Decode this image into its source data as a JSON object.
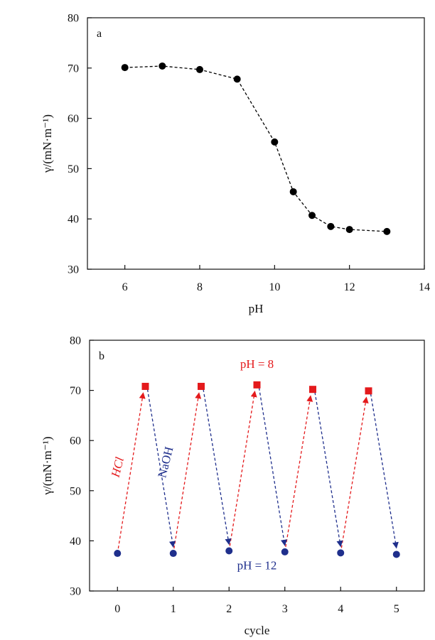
{
  "chart_data": [
    {
      "type": "line",
      "panel_label": "a",
      "xlabel": "pH",
      "ylabel": "γ/(mN·m⁻¹)",
      "xlim": [
        5,
        14
      ],
      "ylim": [
        30,
        80
      ],
      "x_ticks": [
        6,
        8,
        10,
        12,
        14
      ],
      "y_ticks": [
        30,
        40,
        50,
        60,
        70,
        80
      ],
      "grid": false,
      "series": [
        {
          "marker": "circle",
          "line_style": "dashed",
          "color": "#000000",
          "points": [
            {
              "x": 6.0,
              "y": 70.1
            },
            {
              "x": 7.0,
              "y": 70.4
            },
            {
              "x": 8.0,
              "y": 69.7
            },
            {
              "x": 9.0,
              "y": 67.8
            },
            {
              "x": 10.0,
              "y": 55.3
            },
            {
              "x": 10.5,
              "y": 45.4
            },
            {
              "x": 11.0,
              "y": 40.7
            },
            {
              "x": 11.5,
              "y": 38.5
            },
            {
              "x": 12.0,
              "y": 37.9
            },
            {
              "x": 13.0,
              "y": 37.5
            }
          ]
        }
      ]
    },
    {
      "type": "line",
      "panel_label": "b",
      "xlabel": "cycle",
      "ylabel": "γ/(mN·m⁻¹)",
      "xlim": [
        -0.5,
        5.5
      ],
      "ylim": [
        30,
        80
      ],
      "x_ticks": [
        0,
        1,
        2,
        3,
        4,
        5
      ],
      "y_ticks": [
        30,
        40,
        50,
        60,
        70,
        80
      ],
      "grid": false,
      "series": [
        {
          "marker": "circle",
          "color": "#1f2f8c",
          "points": [
            {
              "x": 0,
              "y": 37.5
            },
            {
              "x": 1,
              "y": 37.5
            },
            {
              "x": 2,
              "y": 38.0
            },
            {
              "x": 3,
              "y": 37.8
            },
            {
              "x": 4,
              "y": 37.6
            },
            {
              "x": 5,
              "y": 37.3
            }
          ]
        },
        {
          "marker": "square",
          "color": "#e41a1c",
          "points": [
            {
              "x": 0.5,
              "y": 70.8
            },
            {
              "x": 1.5,
              "y": 70.8
            },
            {
              "x": 2.5,
              "y": 71.1
            },
            {
              "x": 3.5,
              "y": 70.2
            },
            {
              "x": 4.5,
              "y": 69.9
            }
          ]
        }
      ],
      "annotations": [
        {
          "text": "pH = 8",
          "x": 2.5,
          "y": 74.5,
          "color": "#e41a1c",
          "style": "normal"
        },
        {
          "text": "pH = 12",
          "x": 2.5,
          "y": 34.3,
          "color": "#1f2f8c",
          "style": "normal"
        },
        {
          "text": "HCl",
          "x": 0.07,
          "y": 54.5,
          "color": "#e41a1c",
          "style": "italic",
          "rotation": -76
        },
        {
          "text": "NaOH",
          "x": 0.93,
          "y": 55.5,
          "color": "#1f2f8c",
          "style": "normal",
          "rotation": -76
        }
      ]
    }
  ]
}
